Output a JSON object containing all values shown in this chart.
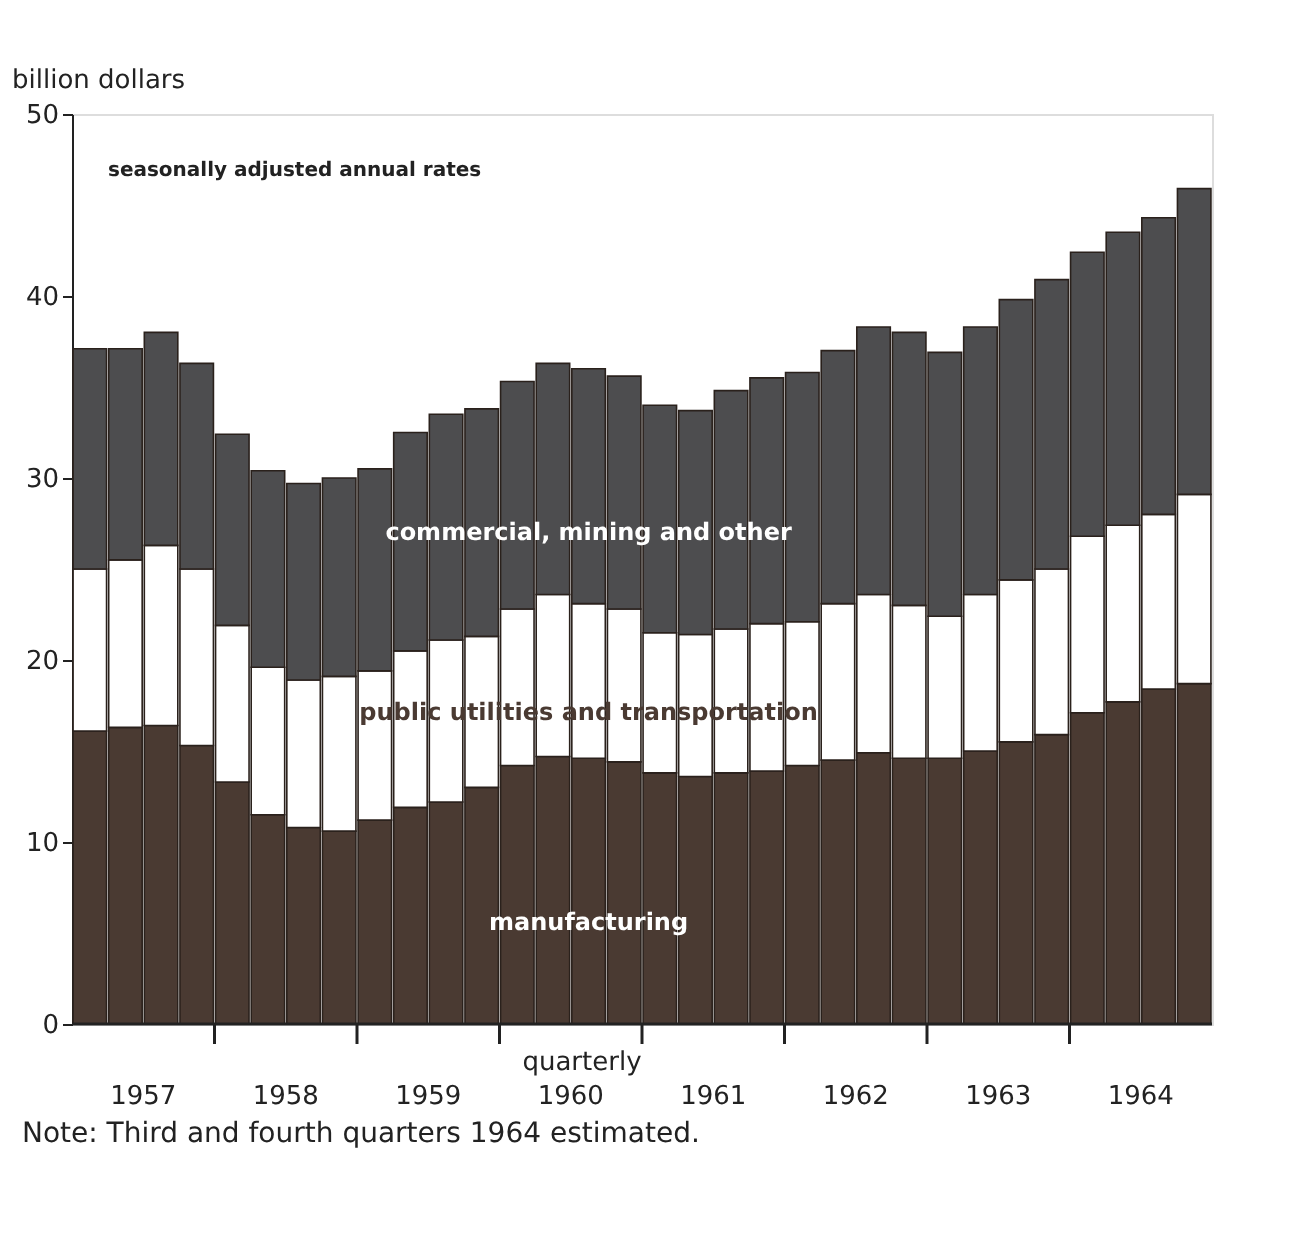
{
  "chart_data": {
    "type": "bar",
    "stacked": true,
    "ylabel": "billion dollars",
    "xlabel": "quarterly",
    "annotations": [
      "seasonally adjusted annual rates",
      "Note: Third and fourth quarters 1964 estimated."
    ],
    "categories": [
      null,
      "1957",
      null,
      null,
      null,
      "1958",
      null,
      null,
      null,
      "1959",
      null,
      null,
      null,
      "1960",
      null,
      null,
      null,
      "1961",
      null,
      null,
      null,
      "1962",
      null,
      null,
      null,
      "1963",
      null,
      null,
      null,
      "1964",
      null,
      null
    ],
    "series": [
      {
        "name": "manufacturing",
        "color": "#4a3a32",
        "values": [
          16.1,
          16.3,
          16.4,
          15.3,
          13.3,
          11.5,
          10.8,
          10.6,
          11.2,
          11.9,
          12.2,
          13.0,
          14.2,
          14.7,
          14.6,
          14.4,
          13.8,
          13.6,
          13.8,
          13.9,
          14.2,
          14.5,
          14.9,
          14.6,
          14.6,
          15.0,
          15.5,
          15.9,
          17.1,
          17.7,
          18.4,
          18.7
        ]
      },
      {
        "name": "public utilities and transportation",
        "color": "#ffffff",
        "values": [
          8.9,
          9.2,
          9.9,
          9.7,
          8.6,
          8.1,
          8.1,
          8.5,
          8.2,
          8.6,
          8.9,
          8.3,
          8.6,
          8.9,
          8.5,
          8.4,
          7.7,
          7.8,
          7.9,
          8.1,
          7.9,
          8.6,
          8.7,
          8.4,
          7.8,
          8.6,
          8.9,
          9.1,
          9.7,
          9.7,
          9.6,
          10.4
        ]
      },
      {
        "name": "commercial, mining and other",
        "color": "#4d4d4f",
        "values": [
          12.1,
          11.6,
          11.7,
          11.3,
          10.5,
          10.8,
          10.8,
          10.9,
          11.1,
          12.0,
          12.4,
          12.5,
          12.5,
          12.7,
          12.9,
          12.8,
          12.5,
          12.3,
          13.1,
          13.5,
          13.7,
          13.9,
          14.7,
          15.0,
          14.5,
          14.7,
          15.4,
          15.9,
          15.6,
          16.1,
          16.3,
          16.8
        ]
      }
    ],
    "ylim": [
      0,
      50
    ],
    "yticks": [
      0,
      10,
      20,
      30,
      40,
      50
    ],
    "grid": false,
    "legend": false
  }
}
